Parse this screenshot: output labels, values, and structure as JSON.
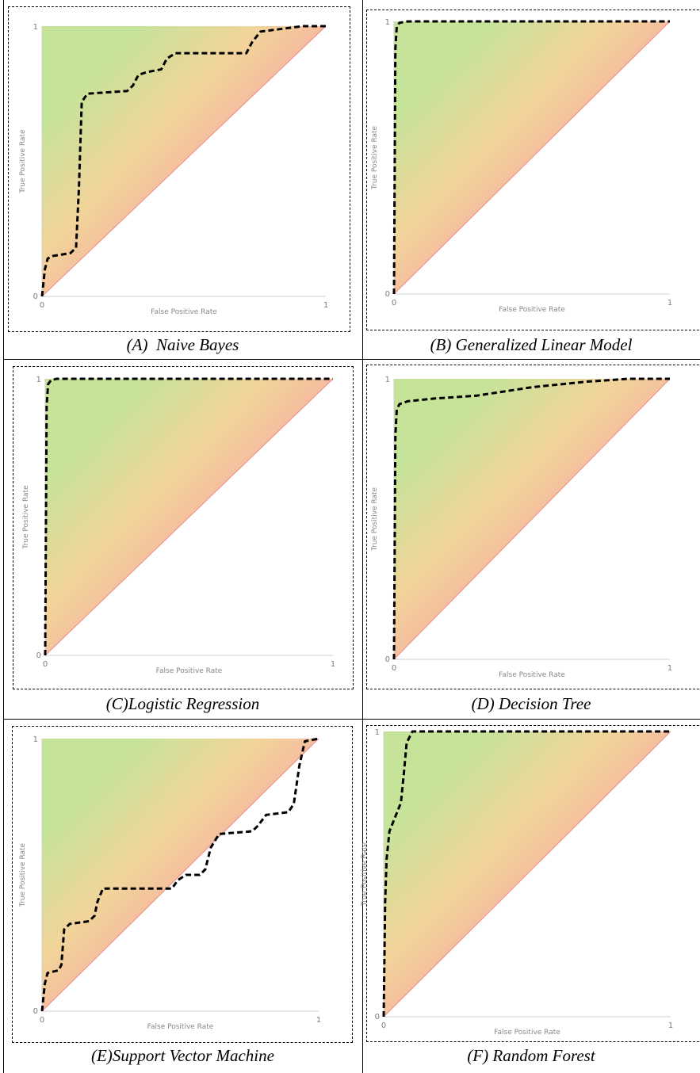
{
  "figure": {
    "captions": [
      "(A)  Naive Bayes",
      "(B) Generalized Linear Model",
      "(C)Logistic Regression",
      "(D) Decision Tree",
      "(E)Support Vector Machine",
      "(F) Random Forest"
    ]
  },
  "colors": {
    "upper_region": "#c6e39a",
    "middle_region": "#f2d49a",
    "lower_region": "#f6a9a3",
    "curve": "#000000"
  },
  "chart_data": [
    {
      "type": "line",
      "title": "(A)  Naive Bayes",
      "xlabel": "False Positive Rate",
      "ylabel": "True Positive Rate",
      "xlim": [
        0,
        1
      ],
      "ylim": [
        0,
        1
      ],
      "x_ticks": [
        "0",
        "1"
      ],
      "y_ticks": [
        "0",
        "1"
      ],
      "x": [
        0,
        0.01,
        0.02,
        0.04,
        0.1,
        0.12,
        0.13,
        0.14,
        0.16,
        0.3,
        0.32,
        0.34,
        0.37,
        0.42,
        0.44,
        0.47,
        0.72,
        0.74,
        0.77,
        0.92,
        1.0
      ],
      "y": [
        0,
        0.1,
        0.14,
        0.15,
        0.16,
        0.18,
        0.4,
        0.72,
        0.75,
        0.76,
        0.78,
        0.82,
        0.83,
        0.84,
        0.88,
        0.9,
        0.9,
        0.94,
        0.98,
        1.0,
        1.0
      ]
    },
    {
      "type": "line",
      "title": "(B) Generalized Linear Model",
      "xlabel": "False Positive Rate",
      "ylabel": "True Positive Rate",
      "xlim": [
        0,
        1
      ],
      "ylim": [
        0,
        1
      ],
      "x_ticks": [
        "0",
        "1"
      ],
      "y_ticks": [
        "0",
        "1"
      ],
      "x": [
        0,
        0.005,
        0.01,
        0.02,
        0.05,
        0.5,
        1.0
      ],
      "y": [
        0,
        0.9,
        0.98,
        0.995,
        1.0,
        1.0,
        1.0
      ]
    },
    {
      "type": "line",
      "title": "(C)Logistic Regression",
      "xlabel": "False Positive Rate",
      "ylabel": "True Positive Rate",
      "xlim": [
        0,
        1
      ],
      "ylim": [
        0,
        1
      ],
      "x_ticks": [
        "0",
        "1"
      ],
      "y_ticks": [
        "0",
        "1"
      ],
      "x": [
        0,
        0.005,
        0.01,
        0.02,
        0.04,
        0.5,
        1.0
      ],
      "y": [
        0,
        0.9,
        0.98,
        0.995,
        1.0,
        1.0,
        1.0
      ]
    },
    {
      "type": "line",
      "title": "(D) Decision Tree",
      "xlabel": "False Positive Rate",
      "ylabel": "True Positive Rate",
      "xlim": [
        0,
        1
      ],
      "ylim": [
        0,
        1
      ],
      "x_ticks": [
        "0",
        "1"
      ],
      "y_ticks": [
        "0",
        "1"
      ],
      "x": [
        0,
        0.005,
        0.01,
        0.02,
        0.05,
        0.15,
        0.3,
        0.5,
        0.7,
        0.85,
        1.0
      ],
      "y": [
        0,
        0.8,
        0.89,
        0.91,
        0.92,
        0.93,
        0.94,
        0.97,
        0.99,
        1.0,
        1.0
      ]
    },
    {
      "type": "line",
      "title": "(E)Support Vector Machine",
      "xlabel": "False Positive Rate",
      "ylabel": "True Positive Rate",
      "xlim": [
        0,
        1
      ],
      "ylim": [
        0,
        1
      ],
      "x_ticks": [
        "0",
        "1"
      ],
      "y_ticks": [
        "0",
        "1"
      ],
      "x": [
        0,
        0.01,
        0.02,
        0.06,
        0.07,
        0.08,
        0.1,
        0.17,
        0.19,
        0.2,
        0.22,
        0.47,
        0.49,
        0.52,
        0.57,
        0.59,
        0.61,
        0.64,
        0.76,
        0.78,
        0.81,
        0.89,
        0.91,
        0.93,
        0.95,
        1.0
      ],
      "y": [
        0,
        0.1,
        0.14,
        0.15,
        0.17,
        0.3,
        0.32,
        0.33,
        0.35,
        0.4,
        0.45,
        0.45,
        0.48,
        0.5,
        0.5,
        0.52,
        0.6,
        0.65,
        0.66,
        0.68,
        0.72,
        0.73,
        0.76,
        0.9,
        0.99,
        1.0
      ]
    },
    {
      "type": "line",
      "title": "(F) Random Forest",
      "xlabel": "False Positive Rate",
      "ylabel": "True Positive Rate",
      "xlim": [
        0,
        1
      ],
      "ylim": [
        0,
        1
      ],
      "x_ticks": [
        "0",
        "1"
      ],
      "y_ticks": [
        "0",
        "1"
      ],
      "x": [
        0,
        0.005,
        0.01,
        0.02,
        0.04,
        0.06,
        0.07,
        0.08,
        0.1,
        0.2,
        1.0
      ],
      "y": [
        0,
        0.4,
        0.55,
        0.65,
        0.7,
        0.75,
        0.85,
        0.96,
        1.0,
        1.0,
        1.0
      ]
    }
  ]
}
